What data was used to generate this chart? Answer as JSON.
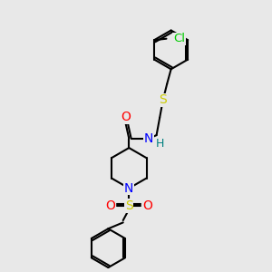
{
  "background_color": "#e8e8e8",
  "bond_color": "#000000",
  "N_color": "#0000ff",
  "O_color": "#ff0000",
  "S_color": "#cccc00",
  "Cl_color": "#00cc00",
  "H_color": "#008080",
  "figsize": [
    3.0,
    3.0
  ],
  "dpi": 100,
  "xlim": [
    0,
    10
  ],
  "ylim": [
    0,
    10
  ]
}
